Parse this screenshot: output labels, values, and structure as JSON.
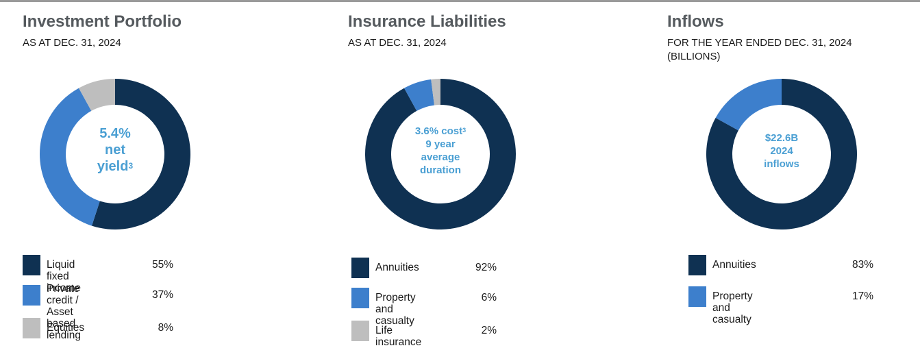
{
  "colors": {
    "navy": "#0f3152",
    "blue": "#3d7fcc",
    "gray": "#bebebe",
    "center_text": "#4a9fd3"
  },
  "chart_data": [
    {
      "type": "pie",
      "title": "Investment Portfolio",
      "subtitle": "AS AT DEC. 31, 2024",
      "center_lines": [
        "5.4%",
        "net",
        "yield"
      ],
      "center_sup": "3",
      "categories": [
        "Liquid fixed income",
        "Private credit /\nAsset based lending",
        "Equities"
      ],
      "values": [
        55,
        37,
        8
      ],
      "value_labels": [
        "55%",
        "37%",
        "8%"
      ],
      "colors": [
        "#0f3152",
        "#3d7fcc",
        "#bebebe"
      ]
    },
    {
      "type": "pie",
      "title": "Insurance Liabilities",
      "subtitle": "AS AT DEC. 31, 2024",
      "center_lines": [
        "3.6% cost",
        "9 year",
        "average",
        "duration"
      ],
      "center_sup": "3",
      "categories": [
        "Annuities",
        "Property and casualty",
        "Life insurance"
      ],
      "values": [
        92,
        6,
        2
      ],
      "value_labels": [
        "92%",
        "6%",
        "2%"
      ],
      "colors": [
        "#0f3152",
        "#3d7fcc",
        "#bebebe"
      ]
    },
    {
      "type": "pie",
      "title": "Inflows",
      "subtitle": "FOR THE YEAR ENDED DEC. 31, 2024\n(BILLIONS)",
      "center_lines": [
        "$22.6B",
        "2024",
        "inflows"
      ],
      "center_sup": "",
      "categories": [
        "Annuities",
        "Property and casualty"
      ],
      "values": [
        83,
        17
      ],
      "value_labels": [
        "83%",
        "17%"
      ],
      "colors": [
        "#0f3152",
        "#3d7fcc"
      ]
    }
  ]
}
